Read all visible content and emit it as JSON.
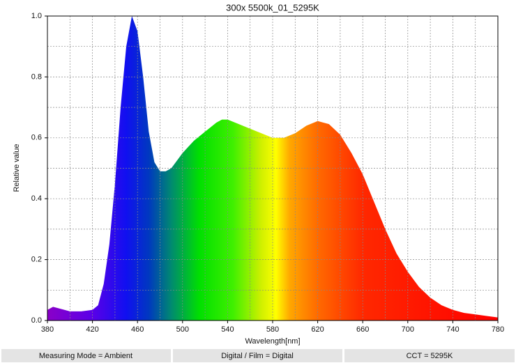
{
  "chart_data": {
    "type": "area",
    "title": "300x 5500k_01_5295K",
    "x_label": "Wavelength[nm]",
    "y_label": "Relative value",
    "x": [
      380,
      385,
      390,
      400,
      410,
      420,
      425,
      430,
      435,
      440,
      445,
      450,
      455,
      460,
      465,
      470,
      475,
      480,
      485,
      490,
      500,
      510,
      520,
      530,
      535,
      540,
      550,
      560,
      570,
      580,
      590,
      600,
      610,
      620,
      630,
      640,
      650,
      660,
      670,
      680,
      690,
      700,
      710,
      720,
      730,
      740,
      750,
      760,
      770,
      780
    ],
    "values": [
      0.035,
      0.045,
      0.04,
      0.03,
      0.03,
      0.035,
      0.05,
      0.12,
      0.25,
      0.45,
      0.7,
      0.9,
      1.0,
      0.95,
      0.8,
      0.62,
      0.52,
      0.49,
      0.49,
      0.5,
      0.55,
      0.59,
      0.62,
      0.65,
      0.66,
      0.66,
      0.645,
      0.63,
      0.615,
      0.6,
      0.6,
      0.615,
      0.64,
      0.655,
      0.645,
      0.61,
      0.55,
      0.48,
      0.39,
      0.3,
      0.22,
      0.16,
      0.11,
      0.075,
      0.05,
      0.035,
      0.025,
      0.02,
      0.015,
      0.01
    ],
    "xlim": [
      380,
      780
    ],
    "ylim": [
      0,
      1
    ],
    "xticks": [
      380,
      420,
      460,
      500,
      540,
      580,
      620,
      660,
      700,
      740,
      780
    ],
    "yticks": [
      {
        "value": 0,
        "label": "0.0"
      },
      0.2,
      0.4,
      0.6,
      0.8,
      {
        "value": 1,
        "label": "1.0"
      }
    ],
    "x_minor_grid": [
      400,
      440,
      480,
      520,
      560,
      600,
      640,
      680,
      720,
      760
    ],
    "y_minor_grid": [
      0.1,
      0.3,
      0.5,
      0.7,
      0.9
    ],
    "grid": true,
    "color_stops": [
      {
        "x": 380,
        "color": "#8a00c8"
      },
      {
        "x": 420,
        "color": "#5a00e8"
      },
      {
        "x": 450,
        "color": "#1010f0"
      },
      {
        "x": 470,
        "color": "#0038c0"
      },
      {
        "x": 490,
        "color": "#008a70"
      },
      {
        "x": 515,
        "color": "#00e000"
      },
      {
        "x": 545,
        "color": "#40f000"
      },
      {
        "x": 570,
        "color": "#d0f000"
      },
      {
        "x": 583,
        "color": "#ffff00"
      },
      {
        "x": 595,
        "color": "#ffa800"
      },
      {
        "x": 620,
        "color": "#ff6a00"
      },
      {
        "x": 660,
        "color": "#ff2800"
      },
      {
        "x": 780,
        "color": "#ff0000"
      }
    ]
  },
  "status_bar": [
    "Measuring Mode = Ambient",
    "Digital / Film = Digital",
    "CCT = 5295K"
  ]
}
